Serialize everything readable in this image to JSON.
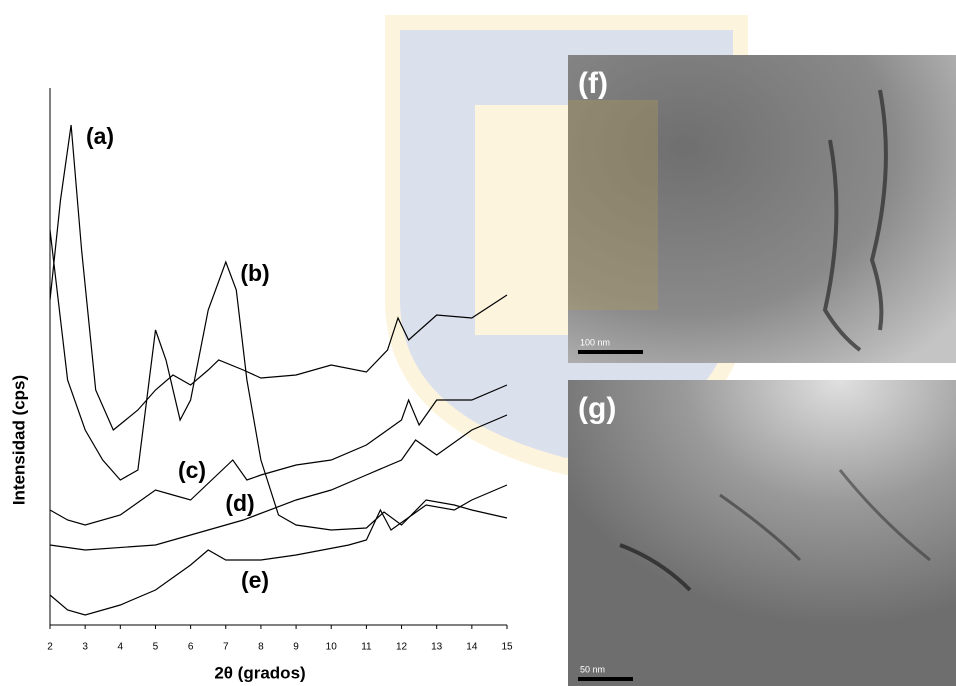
{
  "chart_data": {
    "type": "line",
    "x_label": "2θ (grados)",
    "y_label": "Intensidad (cps)",
    "xlim": [
      2,
      15
    ],
    "xticks": [
      2,
      3,
      4,
      5,
      6,
      7,
      8,
      9,
      10,
      11,
      12,
      13,
      14,
      15
    ],
    "ylim": [
      0,
      535
    ],
    "series": [
      {
        "name": "(a)",
        "color": "#000000",
        "x": [
          2,
          2.3,
          2.6,
          2.9,
          3.3,
          3.8,
          4.5,
          5,
          5.5,
          6,
          6.5,
          6.8,
          7.5,
          8,
          9,
          10,
          11,
          11.6,
          11.9,
          12.2,
          13,
          14,
          15
        ],
        "values": [
          325,
          425,
          500,
          375,
          235,
          195,
          215,
          235,
          250,
          240,
          255,
          265,
          255,
          247,
          250,
          260,
          253,
          275,
          307,
          285,
          310,
          307,
          330
        ]
      },
      {
        "name": "(b)",
        "color": "#000000",
        "x": [
          2,
          2.5,
          3,
          3.5,
          4,
          4.5,
          5,
          5.3,
          5.7,
          6,
          6.5,
          7,
          7.3,
          7.6,
          8,
          8.5,
          9,
          10,
          11,
          11.5,
          12,
          12.7,
          13.5,
          14,
          15
        ],
        "values": [
          395,
          245,
          195,
          165,
          145,
          155,
          295,
          265,
          205,
          225,
          315,
          363,
          335,
          245,
          165,
          110,
          100,
          95,
          97,
          113,
          100,
          125,
          120,
          115,
          107
        ]
      },
      {
        "name": "(c)",
        "color": "#000000",
        "x": [
          2,
          2.5,
          3,
          4,
          5,
          5.5,
          6,
          7.2,
          7.6,
          8,
          9,
          10,
          11,
          12,
          12.2,
          12.5,
          13,
          14,
          15
        ],
        "values": [
          115,
          105,
          100,
          110,
          135,
          130,
          125,
          165,
          145,
          150,
          160,
          165,
          180,
          205,
          225,
          200,
          225,
          225,
          240
        ]
      },
      {
        "name": "(d)",
        "color": "#000000",
        "x": [
          2,
          3,
          5,
          6.5,
          7.5,
          9,
          10,
          11,
          12,
          12.4,
          13,
          14,
          15
        ],
        "values": [
          80,
          75,
          80,
          95,
          105,
          125,
          135,
          150,
          165,
          185,
          170,
          195,
          210
        ]
      },
      {
        "name": "(e)",
        "color": "#000000",
        "x": [
          2,
          2.5,
          3,
          4,
          5,
          6,
          6.5,
          7,
          8,
          9,
          10.5,
          11,
          11.4,
          11.7,
          12.7,
          13.5,
          14,
          15
        ],
        "values": [
          30,
          15,
          10,
          20,
          35,
          60,
          75,
          65,
          65,
          70,
          80,
          85,
          115,
          95,
          120,
          115,
          125,
          140
        ]
      }
    ]
  },
  "panels": [
    {
      "label": "(f)",
      "scale_bar": "100 nm"
    },
    {
      "label": "(g)",
      "scale_bar": "50 nm"
    }
  ]
}
